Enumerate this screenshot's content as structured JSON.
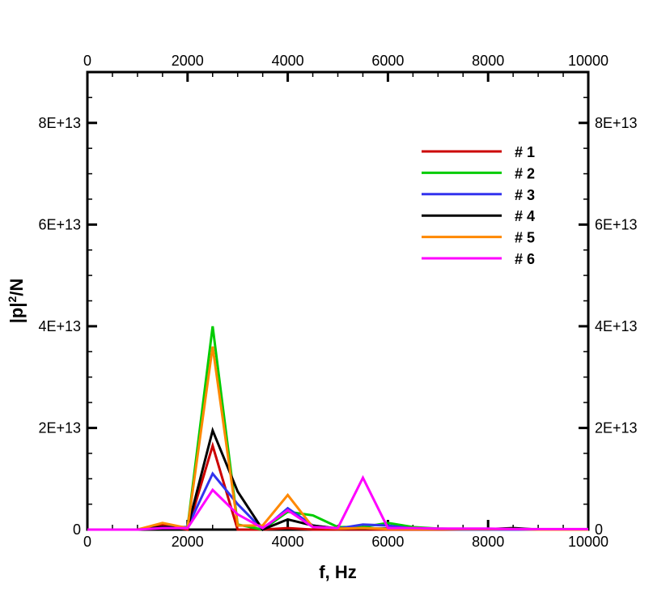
{
  "chart_data": {
    "type": "line",
    "title": "",
    "xlabel": "f, Hz",
    "ylabel": "|p|²/N",
    "ylabel_base": "|p|",
    "ylabel_sup": "2",
    "ylabel_tail": "/N",
    "xlim": [
      0,
      10000
    ],
    "ylim": [
      0,
      90000000000000
    ],
    "x_ticks": [
      0,
      2000,
      4000,
      6000,
      8000,
      10000
    ],
    "x_tick_labels": [
      "0",
      "2000",
      "4000",
      "6000",
      "8000",
      "10000"
    ],
    "y_ticks": [
      0,
      20000000000000,
      40000000000000,
      60000000000000,
      80000000000000
    ],
    "y_tick_labels": [
      "0",
      "2E+13",
      "4E+13",
      "6E+13",
      "8E+13"
    ],
    "grid": false,
    "legend_position": "upper-right",
    "series": [
      {
        "name": "# 1",
        "color": "#cc0000",
        "x": [
          0,
          500,
          1000,
          1500,
          2000,
          2500,
          3000,
          3500,
          4000,
          4500,
          5000,
          5500,
          6000,
          6500,
          7000,
          7500,
          8000,
          8500,
          9000,
          9500,
          10000
        ],
        "y": [
          0,
          0,
          0,
          1000000000000,
          0,
          16500000000000,
          0,
          0,
          300000000000,
          0,
          0,
          0,
          0,
          0,
          0,
          0,
          0,
          0,
          0,
          0,
          0
        ]
      },
      {
        "name": "# 2",
        "color": "#00cc00",
        "x": [
          0,
          500,
          1000,
          1500,
          2000,
          2500,
          3000,
          3500,
          4000,
          4500,
          5000,
          5500,
          6000,
          6500,
          7000,
          7500,
          8000,
          8500,
          9000,
          9500,
          10000
        ],
        "y": [
          0,
          0,
          0,
          500000000000,
          500000000000,
          40000000000000,
          1000000000000,
          0,
          3500000000000,
          2800000000000,
          500000000000,
          500000000000,
          1300000000000,
          500000000000,
          200000000000,
          100000000000,
          0,
          0,
          0,
          0,
          0
        ]
      },
      {
        "name": "# 3",
        "color": "#3333ee",
        "x": [
          0,
          500,
          1000,
          1500,
          2000,
          2500,
          3000,
          3500,
          4000,
          4500,
          5000,
          5500,
          6000,
          6500,
          7000,
          7500,
          8000,
          8500,
          9000,
          9500,
          10000
        ],
        "y": [
          0,
          0,
          0,
          500000000000,
          500000000000,
          11000000000000,
          5000000000000,
          0,
          4200000000000,
          800000000000,
          200000000000,
          1000000000000,
          800000000000,
          200000000000,
          100000000000,
          0,
          0,
          0,
          0,
          0,
          0
        ]
      },
      {
        "name": "# 4",
        "color": "#000000",
        "x": [
          0,
          500,
          1000,
          1500,
          2000,
          2500,
          3000,
          3500,
          4000,
          4500,
          5000,
          5500,
          6000,
          6500,
          7000,
          7500,
          8000,
          8500,
          9000,
          9500,
          10000
        ],
        "y": [
          0,
          0,
          0,
          500000000000,
          300000000000,
          19500000000000,
          7500000000000,
          0,
          2000000000000,
          800000000000,
          200000000000,
          200000000000,
          200000000000,
          200000000000,
          100000000000,
          100000000000,
          100000000000,
          300000000000,
          0,
          0,
          0
        ]
      },
      {
        "name": "# 5",
        "color": "#ff8800",
        "x": [
          0,
          500,
          1000,
          1500,
          2000,
          2500,
          3000,
          3500,
          4000,
          4500,
          5000,
          5500,
          6000,
          6500,
          7000,
          7500,
          8000,
          8500,
          9000,
          9500,
          10000
        ],
        "y": [
          0,
          0,
          0,
          1300000000000,
          300000000000,
          36000000000000,
          800000000000,
          800000000000,
          6800000000000,
          500000000000,
          200000000000,
          300000000000,
          100000000000,
          100000000000,
          100000000000,
          100000000000,
          100000000000,
          100000000000,
          0,
          0,
          0
        ]
      },
      {
        "name": "# 6",
        "color": "#ff00ff",
        "x": [
          0,
          500,
          1000,
          1500,
          2000,
          2500,
          3000,
          3500,
          4000,
          4500,
          5000,
          5500,
          6000,
          6500,
          7000,
          7500,
          8000,
          8500,
          9000,
          9500,
          10000
        ],
        "y": [
          0,
          0,
          0,
          300000000000,
          300000000000,
          7800000000000,
          3000000000000,
          300000000000,
          3800000000000,
          500000000000,
          300000000000,
          10200000000000,
          300000000000,
          300000000000,
          200000000000,
          200000000000,
          200000000000,
          100000000000,
          100000000000,
          100000000000,
          100000000000
        ]
      }
    ]
  }
}
